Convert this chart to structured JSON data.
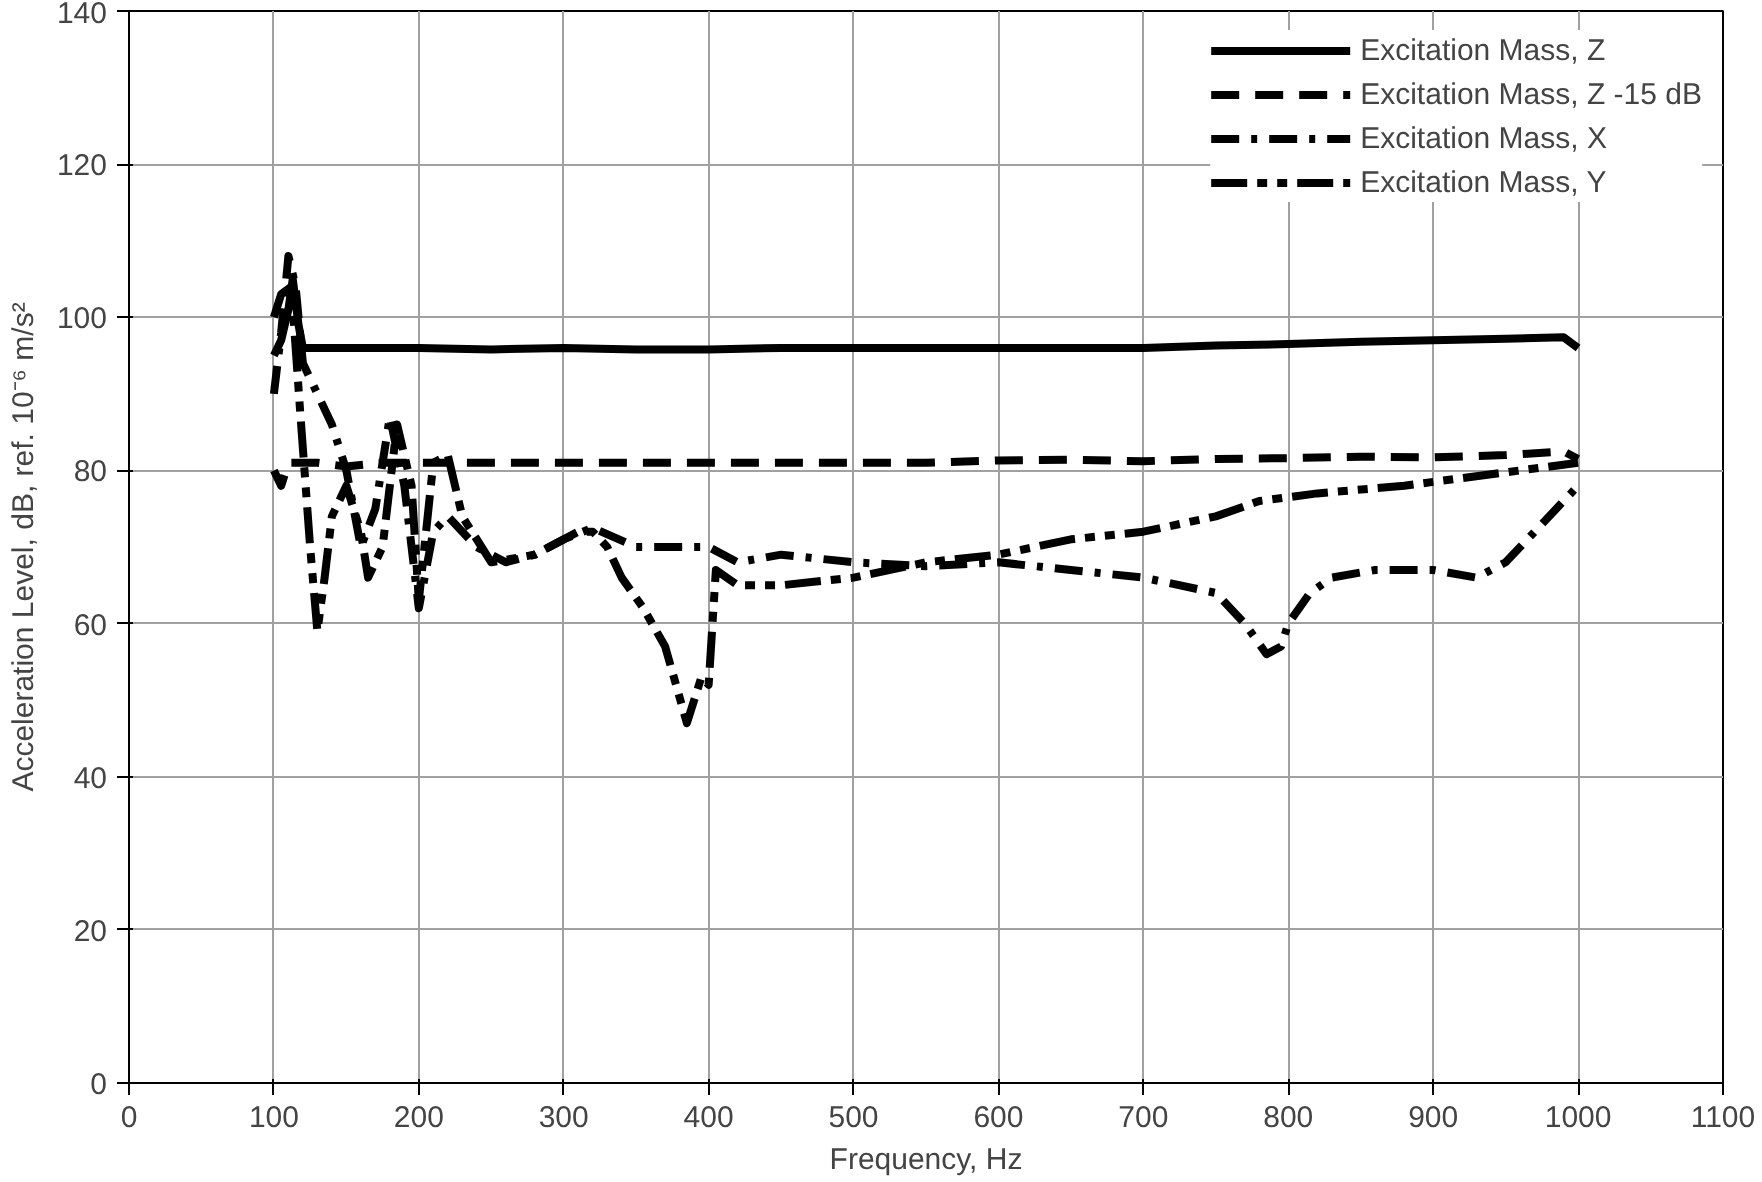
{
  "chart_data": {
    "type": "line",
    "xlabel": "Frequency, Hz",
    "ylabel": "Acceleration Level, dB, ref. 10⁻⁶ m/s²",
    "xlim": [
      0,
      1100
    ],
    "ylim": [
      0,
      140
    ],
    "xticks": [
      0,
      100,
      200,
      300,
      400,
      500,
      600,
      700,
      800,
      900,
      1000,
      1100
    ],
    "yticks": [
      0,
      20,
      40,
      60,
      80,
      100,
      120,
      140
    ],
    "grid": true,
    "legend": "top right",
    "marker": "none",
    "series": [
      {
        "name": "Excitation Mass, Z",
        "color": "#000000",
        "line_style": "solid",
        "x": [
          100,
          105,
          110,
          113,
          117,
          120,
          130,
          150,
          200,
          250,
          300,
          350,
          400,
          450,
          500,
          550,
          600,
          650,
          700,
          750,
          800,
          850,
          900,
          950,
          990,
          1000
        ],
        "values": [
          95,
          97,
          101,
          105,
          99,
          96,
          96,
          96,
          96,
          95.8,
          96,
          95.8,
          95.8,
          96,
          96,
          96,
          96,
          96,
          96,
          96.3,
          96.5,
          96.8,
          97,
          97.2,
          97.4,
          96
        ]
      },
      {
        "name": "Excitation Mass, Z -15 dB",
        "color": "#000000",
        "line_style": "dashed",
        "x": [
          100,
          105,
          110,
          115,
          120,
          130,
          150,
          175,
          200,
          225,
          250,
          300,
          350,
          400,
          450,
          500,
          550,
          600,
          650,
          700,
          750,
          800,
          850,
          900,
          950,
          990,
          1000
        ],
        "values": [
          80,
          78,
          81,
          81,
          81,
          81,
          80.5,
          81,
          81,
          81,
          81,
          81,
          81,
          81,
          81,
          81,
          81,
          81.3,
          81.4,
          81.2,
          81.5,
          81.6,
          81.8,
          81.7,
          82,
          82.5,
          81.5
        ]
      },
      {
        "name": "Excitation Mass, X",
        "color": "#000000",
        "line_style": "dashdot",
        "x": [
          100,
          105,
          110,
          115,
          120,
          130,
          140,
          150,
          160,
          170,
          180,
          190,
          200,
          210,
          220,
          240,
          260,
          280,
          300,
          320,
          350,
          380,
          400,
          420,
          450,
          500,
          550,
          600,
          650,
          700,
          750,
          770,
          785,
          795,
          800,
          815,
          830,
          860,
          900,
          930,
          950,
          970,
          1000
        ],
        "values": [
          90,
          98,
          108,
          104,
          94,
          90,
          86,
          80,
          70,
          75,
          87,
          78,
          62,
          72,
          74,
          70,
          68,
          69,
          71,
          72.5,
          70,
          70,
          70,
          68,
          69,
          68,
          67.5,
          68,
          67,
          66,
          64,
          60,
          56,
          57,
          60,
          64,
          66,
          67,
          67,
          66,
          68,
          72,
          78
        ]
      },
      {
        "name": "Excitation Mass, Y",
        "color": "#000000",
        "line_style": "longdashdot",
        "x": [
          100,
          105,
          112,
          118,
          125,
          130,
          135,
          140,
          150,
          160,
          165,
          175,
          185,
          195,
          200,
          210,
          220,
          230,
          250,
          280,
          310,
          320,
          330,
          340,
          355,
          370,
          385,
          395,
          400,
          405,
          420,
          450,
          500,
          550,
          600,
          650,
          700,
          750,
          780,
          820,
          880,
          920,
          960,
          1000
        ],
        "values": [
          100,
          103,
          104,
          88,
          70,
          59,
          66,
          74,
          78,
          72,
          66,
          70,
          86,
          78,
          63,
          81,
          82,
          74,
          68,
          69,
          72,
          72,
          70,
          66,
          62,
          57,
          47,
          53,
          52,
          67,
          65,
          65,
          66,
          68,
          69,
          71,
          72,
          74,
          76,
          77,
          78,
          79,
          80,
          81
        ]
      }
    ]
  }
}
